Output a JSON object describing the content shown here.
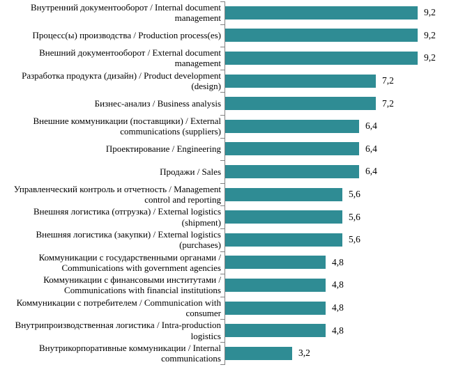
{
  "chart_data": {
    "type": "bar",
    "orientation": "horizontal",
    "title": "",
    "xlabel": "",
    "ylabel": "",
    "xlim": [
      0,
      10
    ],
    "grid": false,
    "legend": null,
    "bar_color": "#2F8C94",
    "axis_color": "#808080",
    "decimal_separator": ",",
    "categories": [
      "Внутренний документооборот / Internal document management",
      "Процесс(ы) производства / Production process(es)",
      "Внешний документооборот / External document management",
      "Разработка продукта (дизайн) / Product development (design)",
      "Бизнес-анализ / Business analysis",
      "Внешние коммуникации (поставщики) / External communications (suppliers)",
      "Проектирование / Engineering",
      "Продажи / Sales",
      "Управленческий контроль и отчетность / Management control and reporting",
      "Внешняя логистика (отгрузка) / External logistics (shipment)",
      "Внешняя логистика (закупки) / External logistics (purchases)",
      "Коммуникации с государственными органами / Communications with government agencies",
      "Коммуникации с финансовыми институтами / Communications with financial institutions",
      "Коммуникации с потребителем / Communication with consumer",
      "Внутрипроизводственная логистика / Intra-production logistics",
      "Внутрикорпоративные коммуникации / Internal communications"
    ],
    "values": [
      9.2,
      9.2,
      9.2,
      7.2,
      7.2,
      6.4,
      6.4,
      6.4,
      5.6,
      5.6,
      5.6,
      4.8,
      4.8,
      4.8,
      4.8,
      3.2
    ],
    "value_labels": [
      "9,2",
      "9,2",
      "9,2",
      "7,2",
      "7,2",
      "6,4",
      "6,4",
      "6,4",
      "5,6",
      "5,6",
      "5,6",
      "4,8",
      "4,8",
      "4,8",
      "4,8",
      "3,2"
    ]
  }
}
